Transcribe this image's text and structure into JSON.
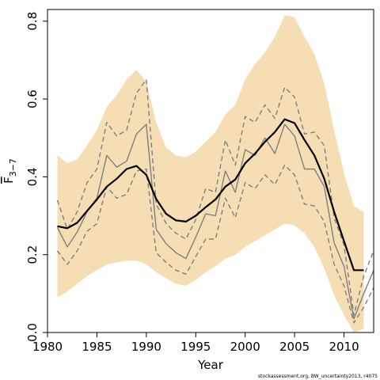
{
  "chart_data": {
    "type": "line",
    "xlabel": "Year",
    "ylabel": "F",
    "ylabel_subscript": "3−7",
    "credit": "stockassessment.org, BW_uncertainty2013, r4075",
    "xlim": [
      1980,
      2013
    ],
    "ylim": [
      0,
      0.83
    ],
    "x_ticks": [
      1980,
      1985,
      1990,
      1995,
      2000,
      2005,
      2010
    ],
    "y_ticks": [
      0.0,
      0.2,
      0.4,
      0.6,
      0.8
    ],
    "y_tick_labels": [
      "0.0",
      "0.2",
      "0.4",
      "0.6",
      "0.8"
    ],
    "colors": {
      "band": "#f5deb3",
      "estimate": "#000000",
      "retro_solid": "#7f7f7f",
      "retro_dashed": "#7f7f7f",
      "frame": "#000000"
    },
    "band": {
      "x": [
        1981,
        1982,
        1983,
        1984,
        1985,
        1986,
        1987,
        1988,
        1989,
        1990,
        1991,
        1992,
        1993,
        1994,
        1995,
        1996,
        1997,
        1998,
        1999,
        2000,
        2001,
        2002,
        2003,
        2004,
        2005,
        2006,
        2007,
        2008,
        2009,
        2010,
        2011,
        2012
      ],
      "upper": [
        0.455,
        0.435,
        0.445,
        0.48,
        0.52,
        0.58,
        0.61,
        0.65,
        0.675,
        0.645,
        0.54,
        0.475,
        0.455,
        0.45,
        0.465,
        0.49,
        0.515,
        0.56,
        0.585,
        0.65,
        0.69,
        0.72,
        0.76,
        0.815,
        0.81,
        0.76,
        0.715,
        0.64,
        0.52,
        0.41,
        0.325,
        0.31
      ],
      "lower": [
        0.09,
        0.105,
        0.125,
        0.145,
        0.16,
        0.175,
        0.18,
        0.185,
        0.185,
        0.175,
        0.155,
        0.14,
        0.125,
        0.12,
        0.135,
        0.155,
        0.17,
        0.19,
        0.2,
        0.22,
        0.235,
        0.25,
        0.265,
        0.28,
        0.275,
        0.255,
        0.22,
        0.165,
        0.095,
        0.045,
        0.0,
        0.01
      ]
    },
    "series": [
      {
        "role": "estimate",
        "style": "solid-thick",
        "x": [
          1981,
          1982,
          1983,
          1984,
          1985,
          1986,
          1987,
          1988,
          1989,
          1990,
          1991,
          1992,
          1993,
          1994,
          1995,
          1996,
          1997,
          1998,
          1999,
          2000,
          2001,
          2002,
          2003,
          2004,
          2005,
          2006,
          2007,
          2008,
          2009,
          2010,
          2011,
          2012
        ],
        "values": [
          0.273,
          0.268,
          0.282,
          0.312,
          0.342,
          0.375,
          0.395,
          0.42,
          0.428,
          0.405,
          0.343,
          0.305,
          0.288,
          0.285,
          0.3,
          0.322,
          0.342,
          0.375,
          0.393,
          0.435,
          0.46,
          0.49,
          0.515,
          0.548,
          0.538,
          0.495,
          0.455,
          0.395,
          0.31,
          0.235,
          0.16,
          0.16
        ]
      },
      {
        "role": "retrospective-estimate",
        "style": "solid-thin",
        "x": [
          1981,
          1982,
          1983,
          1984,
          1985,
          1986,
          1987,
          1988,
          1989,
          1990,
          1991,
          1992,
          1993,
          1994,
          1995,
          1996,
          1997,
          1998,
          1999,
          2000,
          2001,
          2002,
          2003,
          2004,
          2005,
          2006,
          2007,
          2008,
          2009,
          2010,
          2011,
          2012,
          2013
        ],
        "values": [
          0.27,
          0.22,
          0.258,
          0.31,
          0.345,
          0.455,
          0.425,
          0.44,
          0.51,
          0.535,
          0.265,
          0.228,
          0.205,
          0.19,
          0.245,
          0.305,
          0.3,
          0.415,
          0.36,
          0.47,
          0.455,
          0.5,
          0.46,
          0.535,
          0.505,
          0.42,
          0.42,
          0.375,
          0.23,
          0.17,
          0.035,
          0.1,
          0.16
        ]
      },
      {
        "role": "retrospective-upper",
        "style": "dashed",
        "x": [
          1981,
          1982,
          1983,
          1984,
          1985,
          1986,
          1987,
          1988,
          1989,
          1990,
          1991,
          1992,
          1993,
          1994,
          1995,
          1996,
          1997,
          1998,
          1999,
          2000,
          2001,
          2002,
          2003,
          2004,
          2005,
          2006,
          2007,
          2008,
          2009,
          2010,
          2011,
          2012,
          2013
        ],
        "values": [
          0.34,
          0.265,
          0.31,
          0.385,
          0.42,
          0.54,
          0.505,
          0.52,
          0.615,
          0.65,
          0.33,
          0.28,
          0.255,
          0.24,
          0.29,
          0.37,
          0.36,
          0.495,
          0.43,
          0.555,
          0.54,
          0.585,
          0.55,
          0.63,
          0.605,
          0.51,
          0.515,
          0.48,
          0.295,
          0.225,
          0.045,
          0.145,
          0.21
        ]
      },
      {
        "role": "retrospective-lower",
        "style": "dashed",
        "x": [
          1981,
          1982,
          1983,
          1984,
          1985,
          1986,
          1987,
          1988,
          1989,
          1990,
          1991,
          1992,
          1993,
          1994,
          1995,
          1996,
          1997,
          1998,
          1999,
          2000,
          2001,
          2002,
          2003,
          2004,
          2005,
          2006,
          2007,
          2008,
          2009,
          2010,
          2011,
          2012,
          2013
        ],
        "values": [
          0.21,
          0.175,
          0.21,
          0.26,
          0.28,
          0.375,
          0.345,
          0.355,
          0.415,
          0.42,
          0.205,
          0.18,
          0.16,
          0.15,
          0.195,
          0.24,
          0.24,
          0.345,
          0.295,
          0.385,
          0.37,
          0.405,
          0.38,
          0.43,
          0.405,
          0.33,
          0.325,
          0.285,
          0.175,
          0.12,
          0.025,
          0.065,
          0.115
        ]
      }
    ]
  }
}
